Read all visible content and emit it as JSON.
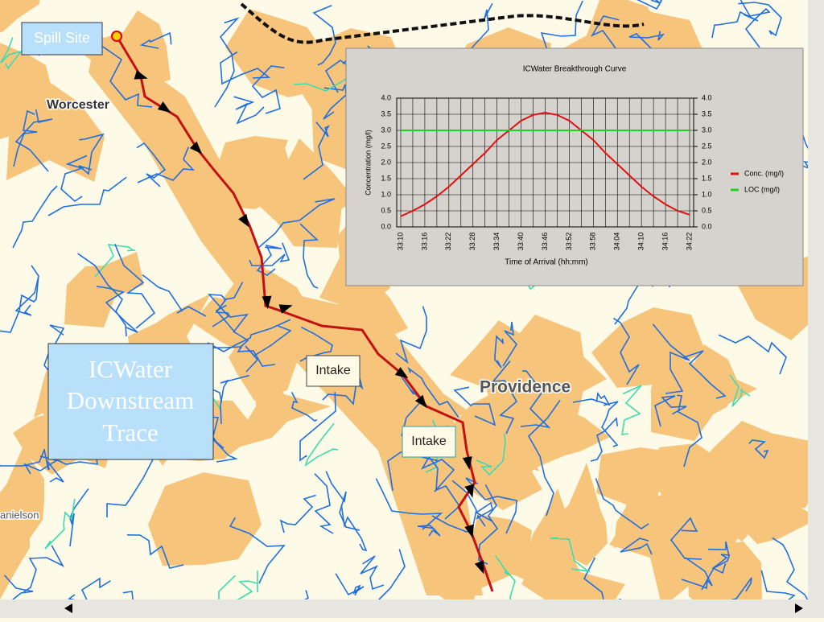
{
  "map_labels": {
    "spill_site": "Spill Site",
    "worcester": "Worcester",
    "trace_title": [
      "ICWater",
      "Downstream",
      "Trace"
    ],
    "intake_1": "Intake",
    "intake_2": "Intake",
    "providence": "Providence",
    "danielson": "anielson"
  },
  "chart_data": {
    "type": "line",
    "title": "ICWater Breakthrough Curve",
    "x_label": "Time of Arrival (hh:mm)",
    "y_label": "Concentration (mg/l)",
    "categories": [
      "33:10",
      null,
      "33:16",
      null,
      "33:22",
      null,
      "33:28",
      null,
      "33:34",
      null,
      "33:40",
      null,
      "33:46",
      null,
      "33:52",
      null,
      "33:58",
      null,
      "34:04",
      null,
      "34:10",
      null,
      "34:16",
      null,
      "34:22"
    ],
    "series": [
      {
        "name": "Conc. (mg/l)",
        "color": "#e01010",
        "values": [
          0.33,
          0.5,
          0.7,
          0.95,
          1.25,
          1.6,
          1.95,
          2.3,
          2.7,
          3.0,
          3.3,
          3.48,
          3.55,
          3.48,
          3.3,
          3.0,
          2.7,
          2.3,
          1.95,
          1.6,
          1.25,
          0.95,
          0.7,
          0.5,
          0.38
        ]
      },
      {
        "name": "LOC (mg/l)",
        "color": "#22d022",
        "values": [
          3.0,
          3.0,
          3.0,
          3.0,
          3.0,
          3.0,
          3.0,
          3.0,
          3.0,
          3.0,
          3.0,
          3.0,
          3.0,
          3.0,
          3.0,
          3.0,
          3.0,
          3.0,
          3.0,
          3.0,
          3.0,
          3.0,
          3.0,
          3.0,
          3.0
        ]
      }
    ],
    "ylim": [
      0,
      4
    ],
    "yticks": [
      {
        "value": 0,
        "label": "0.0"
      },
      {
        "value": 0.5,
        "label": "0.5"
      },
      {
        "value": 1,
        "label": "1.0"
      },
      {
        "value": 1.5,
        "label": "1.5"
      },
      {
        "value": 2,
        "label": "2.0"
      },
      {
        "value": 2.5,
        "label": "2.5"
      },
      {
        "value": 3,
        "label": "3.0"
      },
      {
        "value": 3.5,
        "label": "3.5"
      },
      {
        "value": 4,
        "label": "4.0"
      }
    ],
    "y2lim": [
      0,
      4
    ],
    "y2ticks": [
      {
        "value": 0,
        "label": "0.0"
      },
      {
        "value": 0.5,
        "label": "0.5"
      },
      {
        "value": 1,
        "label": "1.0"
      },
      {
        "value": 1.5,
        "label": "1.5"
      },
      {
        "value": 2,
        "label": "2.0"
      },
      {
        "value": 2.5,
        "label": "2.5"
      },
      {
        "value": 3,
        "label": "3.0"
      },
      {
        "value": 3.5,
        "label": "3.5"
      },
      {
        "value": 4,
        "label": "4.0"
      }
    ],
    "grid": true,
    "legend": "right"
  }
}
